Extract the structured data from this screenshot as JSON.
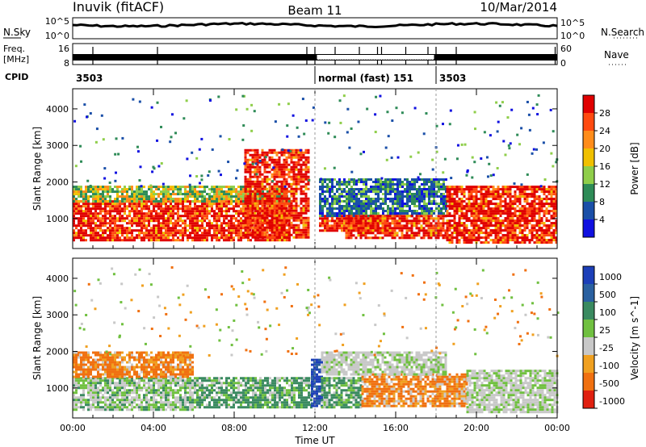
{
  "header": {
    "title": "Inuvik (fitACF)",
    "beam": "Beam 11",
    "date": "10/Mar/2014"
  },
  "noise_panel": {
    "left_label": "N.Sky",
    "right_label": "N.Search",
    "left_ticks": [
      "10^5",
      "10^0"
    ],
    "right_ticks": [
      "10^5",
      "10^0"
    ]
  },
  "freq_panel": {
    "left_label_top": "Freq.",
    "left_label_unit": "[MHz]",
    "left_ticks": [
      "16",
      "8"
    ],
    "right_label": "Nave",
    "right_ticks": [
      "60",
      "0"
    ]
  },
  "cpid": {
    "label": "CPID",
    "segments": [
      {
        "start_hour": 0,
        "text": "3503"
      },
      {
        "start_hour": 12,
        "text": "normal (fast)  151"
      },
      {
        "start_hour": 18,
        "text": "3503"
      }
    ]
  },
  "colors": {
    "power_scale": [
      "#1010e0",
      "#1a4fa8",
      "#2e8b57",
      "#8fce4a",
      "#f0c000",
      "#ff8c1a",
      "#ff4a10",
      "#e00000"
    ],
    "velocity_scale": [
      "#1c3fb8",
      "#2a60a0",
      "#3a8a60",
      "#70c040",
      "#c8c8c8",
      "#f0a020",
      "#f07010",
      "#e02010"
    ]
  },
  "chart_data": [
    {
      "type": "heatmap",
      "title": "",
      "ylabel": "Slant Range [km]",
      "xlabel": "",
      "x_range_hours": [
        0,
        24
      ],
      "ylim": [
        180,
        4550
      ],
      "yticks": [
        1000,
        2000,
        3000,
        4000
      ],
      "colorbar": {
        "label": "Power [dB]",
        "ticks": [
          "4",
          "8",
          "12",
          "16",
          "20",
          "24",
          "28"
        ]
      },
      "bands": [
        {
          "hours": [
            0,
            10.8
          ],
          "range_km": [
            380,
            1500
          ],
          "level": "high"
        },
        {
          "hours": [
            0,
            10.8
          ],
          "range_km": [
            1500,
            1900
          ],
          "level": "mid"
        },
        {
          "hours": [
            8.5,
            11.7
          ],
          "range_km": [
            500,
            2900
          ],
          "level": "high"
        },
        {
          "hours": [
            12.2,
            15.5
          ],
          "range_km": [
            650,
            1100
          ],
          "level": "high"
        },
        {
          "hours": [
            12.2,
            18.5
          ],
          "range_km": [
            1100,
            2100
          ],
          "level": "low"
        },
        {
          "hours": [
            13.5,
            18.5
          ],
          "range_km": [
            500,
            1100
          ],
          "level": "high"
        },
        {
          "hours": [
            18.5,
            24
          ],
          "range_km": [
            350,
            1900
          ],
          "level": "high"
        }
      ]
    },
    {
      "type": "heatmap",
      "title": "",
      "ylabel": "Slant Range [km]",
      "xlabel": "Time UT",
      "x_range_hours": [
        0,
        24
      ],
      "xticks": [
        "00:00",
        "04:00",
        "08:00",
        "12:00",
        "16:00",
        "20:00",
        "00:00"
      ],
      "ylim": [
        180,
        4550
      ],
      "yticks": [
        1000,
        2000,
        3000,
        4000
      ],
      "colorbar": {
        "label": "Velocity [m s^-1]",
        "ticks": [
          "1000",
          "500",
          "100",
          "25",
          "-25",
          "-100",
          "-500",
          "-1000"
        ]
      },
      "bands": [
        {
          "hours": [
            0,
            6.0
          ],
          "range_km": [
            380,
            1300
          ],
          "velocity": "green-gray"
        },
        {
          "hours": [
            0,
            6.0
          ],
          "range_km": [
            1300,
            2000
          ],
          "velocity": "orange"
        },
        {
          "hours": [
            6.0,
            11.8
          ],
          "range_km": [
            450,
            1300
          ],
          "velocity": "green"
        },
        {
          "hours": [
            11.8,
            12.3
          ],
          "range_km": [
            500,
            1800
          ],
          "velocity": "blue"
        },
        {
          "hours": [
            12.3,
            14.3
          ],
          "range_km": [
            500,
            1300
          ],
          "velocity": "green"
        },
        {
          "hours": [
            14.3,
            19.5
          ],
          "range_km": [
            500,
            1400
          ],
          "velocity": "orange"
        },
        {
          "hours": [
            12.3,
            18.5
          ],
          "range_km": [
            1400,
            2000
          ],
          "velocity": "gray"
        },
        {
          "hours": [
            19.5,
            24
          ],
          "range_km": [
            350,
            1500
          ],
          "velocity": "gray"
        }
      ]
    }
  ]
}
